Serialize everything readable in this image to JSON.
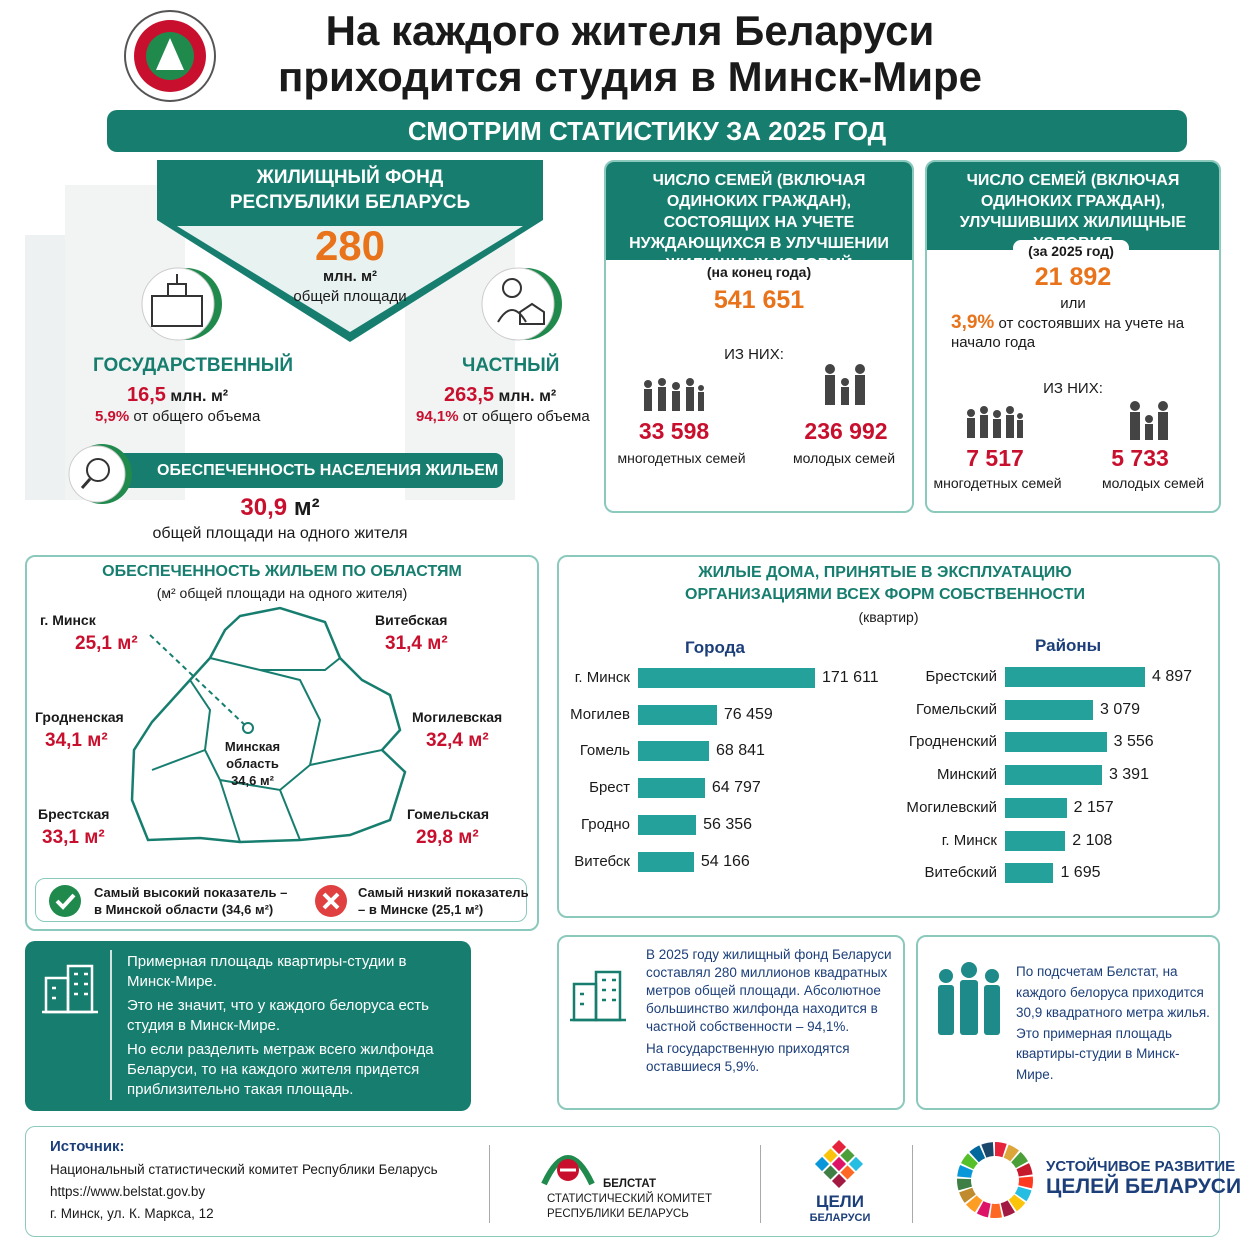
{
  "header": {
    "title_line1": "На каждого жителя Беларуси",
    "title_line2": "приходится студия в Минск-Мире",
    "banner": "СМОТРИМ СТАТИСТИКУ ЗА 2025 ГОД"
  },
  "housing_fund": {
    "title": "ЖИЛИЩНЫЙ ФОНД РЕСПУБЛИКИ БЕЛАРУСЬ",
    "value": "280",
    "unit": "млн. м²",
    "unit_note": "общей площади",
    "state": {
      "label": "ГОСУДАРСТВЕННЫЙ",
      "value": "16,5",
      "unit": "млн. м²",
      "share": "5,9%",
      "share_note": "от общего объема"
    },
    "private": {
      "label": "ЧАСТНЫЙ",
      "value": "263,5",
      "unit": "млн. м²",
      "share": "94,1%",
      "share_note": "от общего объема"
    }
  },
  "provision": {
    "label": "ОБЕСПЕЧЕННОСТЬ НАСЕЛЕНИЯ ЖИЛЬЕМ",
    "value": "30,9",
    "unit": "м²",
    "note": "общей площади на одного жителя"
  },
  "waiting": {
    "title": "ЧИСЛО СЕМЕЙ (ВКЛЮЧАЯ ОДИНОКИХ ГРАЖДАН), СОСТОЯЩИХ НА УЧЕТЕ НУЖДАЮЩИХСЯ В УЛУЧШЕНИИ ЖИЛИЩНЫХ УСЛОВИЙ",
    "note": "(на конец года)",
    "value": "541 651",
    "of_them": "ИЗ НИХ:",
    "large": {
      "value": "33 598",
      "label": "многодетных семей"
    },
    "young": {
      "value": "236 992",
      "label": "молодых семей"
    }
  },
  "improved": {
    "title": "ЧИСЛО СЕМЕЙ (ВКЛЮЧАЯ ОДИНОКИХ ГРАЖДАН), УЛУЧШИВШИХ ЖИЛИЩНЫЕ УСЛОВИЯ",
    "note": "(за 2025 год)",
    "value": "21 892",
    "or": "или",
    "share": "3,9%",
    "share_note": "от состоявших на учете на начало года",
    "of_them": "ИЗ НИХ:",
    "large": {
      "value": "7 517",
      "label": "многодетных семей"
    },
    "young": {
      "value": "5 733",
      "label": "молодых семей"
    }
  },
  "regions": {
    "title": "ОБЕСПЕЧЕННОСТЬ ЖИЛЬЕМ ПО ОБЛАСТЯМ",
    "subtitle": "(м² общей площади на одного жителя)",
    "items": [
      {
        "name": "г. Минск",
        "value": "25,1 м²"
      },
      {
        "name": "Витебская",
        "value": "31,4 м²"
      },
      {
        "name": "Гродненская",
        "value": "34,1 м²"
      },
      {
        "name": "Могилевская",
        "value": "32,4 м²"
      },
      {
        "name": "Брестская",
        "value": "33,1 м²"
      },
      {
        "name": "Гомельская",
        "value": "29,8 м²"
      }
    ],
    "center": {
      "name": "Минская область",
      "value": "34,6 м²"
    },
    "best": "Самый высокий показатель – в Минской области (34,6 м²)",
    "worst": "Самый низкий показатель – в Минске (25,1 м²)"
  },
  "houses": {
    "title": "ЖИЛЫЕ ДОМА, ПРИНЯТЫЕ В ЭКСПЛУАТАЦИЮ ОРГАНИЗАЦИЯМИ ВСЕХ ФОРМ СОБСТВЕННОСТИ",
    "subtitle": "(квартир)"
  },
  "chart_data": [
    {
      "type": "bar",
      "title": "Города",
      "color": "#24a19a",
      "categories": [
        "г. Минск",
        "Могилев",
        "Гомель",
        "Брест",
        "Гродно",
        "Витебск"
      ],
      "values": [
        171611,
        76459,
        68841,
        64797,
        56356,
        54166
      ],
      "value_labels": [
        "171 611",
        "76 459",
        "68 841",
        "64 797",
        "56 356",
        "54 166"
      ]
    },
    {
      "type": "bar",
      "title": "Районы",
      "color": "#24a19a",
      "categories": [
        "Брестский",
        "Гомельский",
        "Гродненский",
        "Минский",
        "Могилевский",
        "г. Минск",
        "Витебский"
      ],
      "values": [
        4897,
        3079,
        3556,
        3391,
        2157,
        2108,
        1695
      ],
      "value_labels": [
        "4 897",
        "3 079",
        "3 556",
        "3 391",
        "2 157",
        "2 108",
        "1 695"
      ]
    }
  ],
  "info": {
    "box1": [
      "Примерная площадь квартиры-студии в Минск-Мире.",
      "Это не значит, что у каждого белоруса есть студия в Минск-Мире.",
      "Но если разделить метраж всего жилфонда Беларуси, то на каждого жителя придется приблизительно такая площадь."
    ],
    "box2": [
      "В 2025 году жилищный фонд Беларуси составлял 280 миллионов квадратных метров общей площади. Абсолютное большинство жилфонда находится в частной собственности – 94,1%.",
      "На государственную приходятся оставшиеся 5,9%."
    ],
    "box3": [
      "По подсчетам Белстат, на каждого белоруса приходится 30,9 квадратного метра жилья. Это примерная площадь квартиры-студии в Минск-Мире."
    ]
  },
  "footer": {
    "source_label": "Источник:",
    "source": "Национальный статистический комитет Республики Беларусь",
    "url": "https://www.belstat.gov.by",
    "address": "г. Минск, ул. К. Маркса, 12",
    "belstat": [
      "БЕЛСТАТ",
      "СТАТИСТИЧЕСКИЙ КОМИТЕТ",
      "РЕСПУБЛИКИ БЕЛАРУСЬ"
    ],
    "goals": [
      "ЦЕЛИ",
      "БЕЛАРУСИ"
    ],
    "sdg": [
      "УСТОЙЧИВОЕ РАЗВИТИЕ",
      "ЦЕЛЕЙ БЕЛАРУСИ"
    ]
  }
}
